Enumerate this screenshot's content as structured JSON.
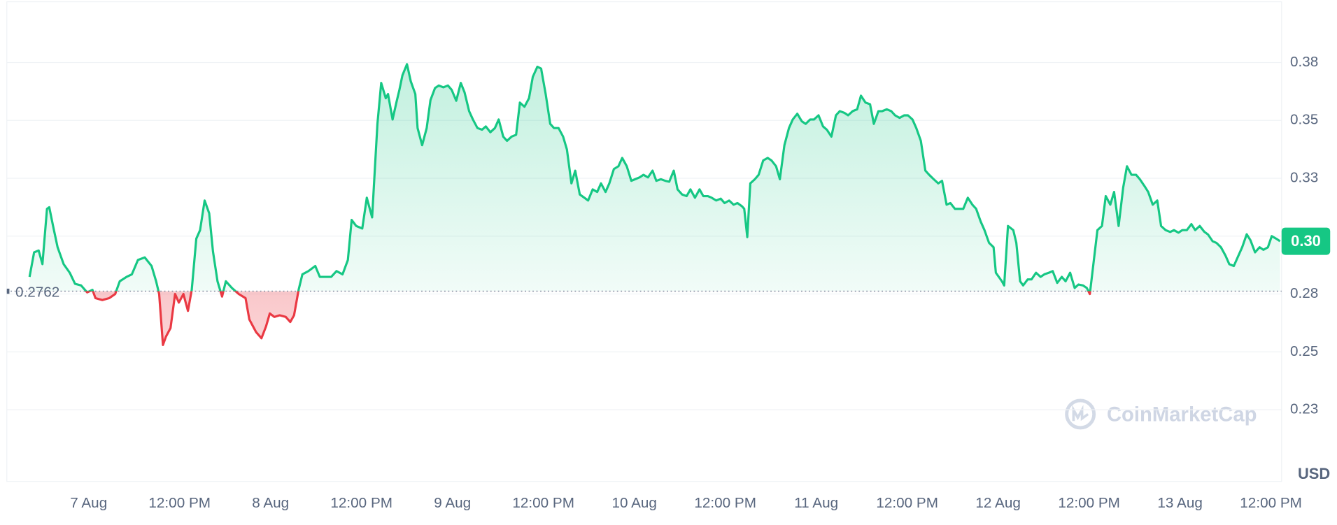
{
  "chart_data": {
    "type": "line",
    "x": [
      -7.8,
      -7.2,
      -6.6,
      -6.1,
      -5.5,
      -5.2,
      -4.7,
      -4.1,
      -3.3,
      -2.5,
      -1.8,
      -1.0,
      -0.2,
      0.5,
      0.9,
      1.8,
      2.7,
      3.5,
      4.1,
      5.0,
      5.7,
      6.5,
      7.4,
      8.3,
      8.9,
      9.3,
      9.8,
      10.2,
      10.8,
      11.4,
      11.9,
      12.5,
      13.1,
      13.6,
      14.2,
      14.7,
      15.3,
      15.9,
      16.4,
      17.0,
      17.6,
      18.1,
      18.9,
      19.8,
      20.7,
      21.2,
      22.1,
      22.8,
      23.4,
      23.9,
      24.5,
      25.2,
      26.0,
      26.6,
      27.1,
      27.7,
      28.2,
      29.0,
      29.9,
      30.5,
      31.1,
      32.0,
      32.7,
      33.5,
      34.2,
      34.7,
      35.3,
      36.1,
      36.7,
      37.4,
      38.1,
      38.6,
      39.2,
      39.5,
      40.1,
      40.6,
      41.0,
      41.4,
      42.0,
      42.5,
      43.1,
      43.4,
      44.0,
      44.6,
      45.1,
      45.7,
      46.2,
      46.8,
      47.4,
      47.9,
      48.5,
      49.1,
      49.6,
      50.2,
      50.7,
      51.3,
      51.9,
      52.4,
      53.0,
      53.6,
      54.1,
      54.7,
      55.2,
      55.8,
      56.4,
      56.9,
      57.5,
      58.1,
      58.6,
      59.2,
      59.7,
      60.3,
      60.9,
      61.4,
      62.0,
      62.6,
      63.1,
      63.7,
      64.2,
      64.8,
      65.4,
      65.9,
      66.5,
      67.1,
      67.6,
      68.2,
      68.7,
      69.3,
      69.9,
      70.4,
      71.0,
      71.6,
      72.1,
      72.7,
      73.2,
      73.8,
      74.4,
      74.9,
      75.5,
      76.1,
      76.6,
      77.2,
      77.7,
      78.3,
      78.9,
      79.4,
      80.0,
      80.6,
      81.1,
      81.7,
      82.2,
      82.8,
      83.4,
      83.9,
      84.5,
      85.1,
      85.6,
      86.2,
      86.5,
      86.9,
      87.3,
      87.9,
      88.4,
      89.0,
      89.6,
      90.1,
      90.7,
      91.2,
      91.8,
      92.4,
      92.9,
      93.5,
      94.1,
      94.6,
      95.2,
      95.7,
      96.3,
      96.9,
      97.4,
      98.0,
      98.6,
      99.1,
      99.7,
      100.2,
      100.8,
      101.4,
      101.9,
      102.5,
      103.1,
      103.6,
      104.2,
      104.7,
      105.3,
      105.9,
      106.4,
      107.0,
      107.6,
      108.1,
      108.7,
      109.2,
      109.8,
      110.4,
      110.9,
      111.5,
      112.1,
      112.6,
      113.2,
      113.7,
      114.3,
      114.9,
      115.4,
      116.0,
      116.6,
      117.1,
      117.7,
      118.2,
      118.8,
      119.4,
      119.7,
      120.5,
      120.8,
      121.3,
      122.0,
      122.4,
      122.9,
      123.3,
      123.9,
      124.4,
      125.0,
      125.6,
      126.1,
      126.7,
      127.2,
      127.8,
      128.4,
      128.9,
      129.5,
      130.1,
      130.6,
      131.2,
      131.7,
      132.1,
      132.5,
      133.1,
      133.7,
      134.2,
      134.8,
      135.3,
      135.9,
      136.5,
      137.0,
      137.6,
      138.2,
      138.7,
      139.3,
      139.8,
      140.4,
      141.0,
      141.5,
      142.1,
      142.7,
      143.2,
      143.8,
      144.3,
      144.9,
      145.5,
      146.0,
      146.6,
      147.2,
      147.7,
      148.3,
      148.8,
      149.4,
      150.0,
      150.5,
      151.1,
      151.6,
      152.2,
      152.8,
      153.3,
      153.9,
      154.5,
      155.0,
      155.6,
      156.1,
      156.7,
      157.2
    ],
    "values": [
      0.2824,
      0.293,
      0.2938,
      0.2879,
      0.3118,
      0.3125,
      0.3044,
      0.2952,
      0.2879,
      0.2842,
      0.2794,
      0.2787,
      0.2757,
      0.2768,
      0.2732,
      0.2724,
      0.2732,
      0.275,
      0.2805,
      0.2824,
      0.2835,
      0.2897,
      0.2908,
      0.2871,
      0.2805,
      0.275,
      0.253,
      0.2566,
      0.2603,
      0.275,
      0.2713,
      0.275,
      0.2677,
      0.2768,
      0.2989,
      0.3026,
      0.3154,
      0.3099,
      0.2934,
      0.2805,
      0.2739,
      0.2805,
      0.2776,
      0.275,
      0.2732,
      0.264,
      0.2585,
      0.2559,
      0.261,
      0.2666,
      0.2651,
      0.2658,
      0.2651,
      0.2629,
      0.2658,
      0.2768,
      0.2835,
      0.2849,
      0.2871,
      0.2824,
      0.2824,
      0.2824,
      0.2849,
      0.2835,
      0.2897,
      0.307,
      0.3044,
      0.3033,
      0.3166,
      0.3081,
      0.3485,
      0.3662,
      0.3596,
      0.3614,
      0.3504,
      0.3577,
      0.3632,
      0.3695,
      0.3743,
      0.3669,
      0.3614,
      0.3467,
      0.3393,
      0.3467,
      0.3588,
      0.364,
      0.3651,
      0.3643,
      0.3651,
      0.3632,
      0.3585,
      0.3662,
      0.3621,
      0.354,
      0.3504,
      0.3467,
      0.346,
      0.3474,
      0.3449,
      0.3467,
      0.3504,
      0.343,
      0.3412,
      0.343,
      0.3438,
      0.3577,
      0.3559,
      0.3596,
      0.3688,
      0.3732,
      0.3724,
      0.3614,
      0.3485,
      0.3467,
      0.3467,
      0.343,
      0.3375,
      0.3228,
      0.3283,
      0.318,
      0.3166,
      0.3154,
      0.3202,
      0.3191,
      0.3228,
      0.3191,
      0.3228,
      0.329,
      0.3302,
      0.3338,
      0.3302,
      0.3239,
      0.3246,
      0.3254,
      0.3265,
      0.3254,
      0.3283,
      0.3239,
      0.3246,
      0.3239,
      0.3235,
      0.3283,
      0.3202,
      0.318,
      0.3173,
      0.3202,
      0.3166,
      0.3202,
      0.3173,
      0.3173,
      0.3166,
      0.3154,
      0.3162,
      0.3143,
      0.3154,
      0.3136,
      0.3143,
      0.3129,
      0.3118,
      0.2996,
      0.3228,
      0.3246,
      0.3265,
      0.3327,
      0.3338,
      0.3327,
      0.3302,
      0.3246,
      0.3393,
      0.3467,
      0.3504,
      0.3529,
      0.3496,
      0.3485,
      0.3504,
      0.3504,
      0.3522,
      0.3474,
      0.346,
      0.343,
      0.3522,
      0.354,
      0.3533,
      0.3522,
      0.354,
      0.3548,
      0.3607,
      0.3577,
      0.357,
      0.3485,
      0.354,
      0.354,
      0.3548,
      0.354,
      0.3522,
      0.3511,
      0.3522,
      0.3522,
      0.3504,
      0.3467,
      0.3412,
      0.3283,
      0.3265,
      0.3246,
      0.3228,
      0.3239,
      0.3136,
      0.3143,
      0.3118,
      0.3118,
      0.3118,
      0.3166,
      0.3136,
      0.3118,
      0.3063,
      0.3026,
      0.2971,
      0.2952,
      0.2842,
      0.2805,
      0.2787,
      0.3044,
      0.3026,
      0.2971,
      0.2805,
      0.2787,
      0.2813,
      0.2813,
      0.2842,
      0.2824,
      0.2835,
      0.2842,
      0.2849,
      0.2798,
      0.2824,
      0.2805,
      0.2842,
      0.2776,
      0.2791,
      0.2787,
      0.2776,
      0.275,
      0.286,
      0.3026,
      0.3044,
      0.3173,
      0.3136,
      0.3191,
      0.3044,
      0.321,
      0.3302,
      0.3265,
      0.3265,
      0.3246,
      0.3217,
      0.3191,
      0.3136,
      0.3154,
      0.3044,
      0.3026,
      0.3018,
      0.3026,
      0.3015,
      0.3026,
      0.3026,
      0.3052,
      0.3026,
      0.3044,
      0.3019,
      0.3007,
      0.2978,
      0.2971,
      0.2952,
      0.2916,
      0.2879,
      0.2871,
      0.2908,
      0.2952,
      0.3008,
      0.2982,
      0.293,
      0.2952,
      0.2941,
      0.2952,
      0.3,
      0.2989,
      0.2978
    ],
    "xlim": [
      -10.8,
      157.4
    ],
    "xticks": [
      {
        "value": 0,
        "label": "7 Aug"
      },
      {
        "value": 12,
        "label": "12:00 PM"
      },
      {
        "value": 24,
        "label": "8 Aug"
      },
      {
        "value": 36,
        "label": "12:00 PM"
      },
      {
        "value": 48,
        "label": "9 Aug"
      },
      {
        "value": 60,
        "label": "12:00 PM"
      },
      {
        "value": 72,
        "label": "10 Aug"
      },
      {
        "value": 84,
        "label": "12:00 PM"
      },
      {
        "value": 96,
        "label": "11 Aug"
      },
      {
        "value": 108,
        "label": "12:00 PM"
      },
      {
        "value": 120,
        "label": "12 Aug"
      },
      {
        "value": 132,
        "label": "12:00 PM"
      },
      {
        "value": 144,
        "label": "13 Aug"
      },
      {
        "value": 156,
        "label": "12:00 PM"
      }
    ],
    "ylim": [
      0.194,
      0.402
    ],
    "yticks": [
      {
        "value": 0.225,
        "label": "0.23"
      },
      {
        "value": 0.25,
        "label": "0.25"
      },
      {
        "value": 0.275,
        "label": "0.28"
      },
      {
        "value": 0.3,
        "label": "0.30"
      },
      {
        "value": 0.325,
        "label": "0.33"
      },
      {
        "value": 0.35,
        "label": "0.35"
      },
      {
        "value": 0.375,
        "label": "0.38"
      }
    ],
    "grid": true,
    "baseline": 0.2762,
    "color": "#16c784",
    "down_color": "#ea3943",
    "current_label": "0.30",
    "watermark": "CoinMarketCap",
    "currency": "USD"
  }
}
